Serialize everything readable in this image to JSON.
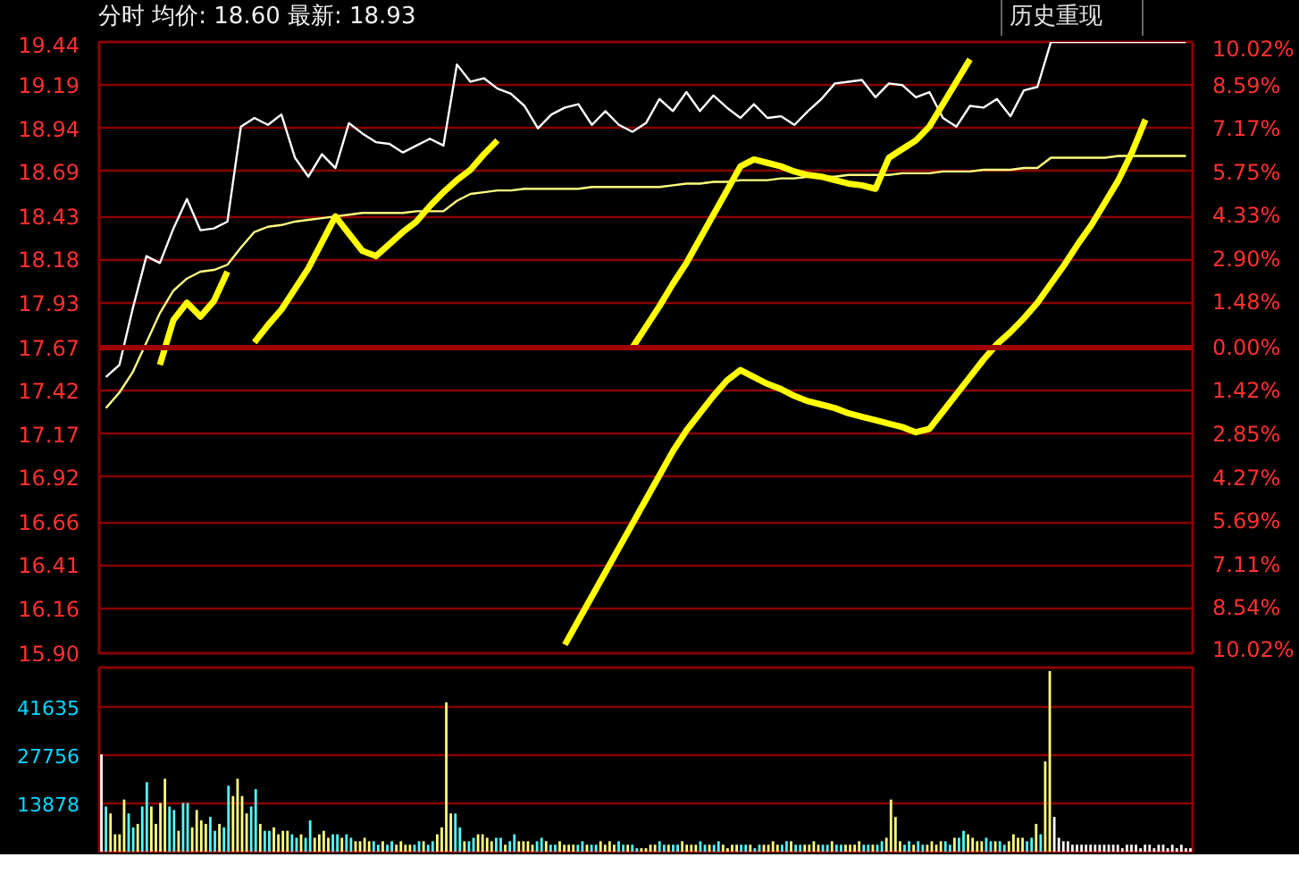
{
  "chart_data": [
    {
      "type": "line",
      "title": "分时 均价: 18.60 最新: 18.93",
      "annotations": [
        "历史重现"
      ],
      "categories": [
        null,
        null,
        null,
        null,
        null,
        null,
        null,
        null,
        null,
        null,
        null,
        null,
        null,
        null,
        null,
        null,
        null,
        null,
        null,
        null,
        null,
        null,
        null,
        null,
        null,
        null,
        null,
        null,
        null,
        null,
        null,
        null,
        null,
        null,
        null,
        null,
        null,
        null,
        null,
        null,
        null,
        null,
        null,
        null,
        null,
        null,
        null,
        null,
        null,
        null,
        null,
        null,
        null,
        null,
        null,
        null,
        null,
        null,
        null,
        null,
        null,
        null,
        null,
        null,
        null,
        null,
        null,
        null,
        null,
        null,
        null,
        null,
        null,
        null,
        null,
        null,
        null,
        null,
        null,
        null,
        null
      ],
      "ylim": [
        15.9,
        19.44
      ],
      "yticks": [
        19.44,
        19.19,
        18.94,
        18.69,
        18.43,
        18.18,
        17.93,
        17.67,
        17.42,
        17.17,
        16.92,
        16.66,
        16.41,
        16.16,
        {
          "value": 15.9,
          "label": "15.90"
        }
      ],
      "y2lim": [
        -10.02,
        10.02
      ],
      "y2ticks": [
        {
          "value": 10.02,
          "label": "10.02%"
        },
        {
          "value": 8.59,
          "label": "8.59%"
        },
        {
          "value": 7.17,
          "label": "7.17%"
        },
        {
          "value": 5.75,
          "label": "5.75%"
        },
        {
          "value": 4.33,
          "label": "4.33%"
        },
        {
          "value": 2.9,
          "label": "2.90%"
        },
        {
          "value": 1.48,
          "label": "1.48%"
        },
        {
          "value": 0,
          "label": "0.00%"
        },
        {
          "value": -1.42,
          "label": "1.42%"
        },
        {
          "value": -2.85,
          "label": "2.85%"
        },
        {
          "value": -4.27,
          "label": "4.27%"
        },
        {
          "value": -5.69,
          "label": "5.69%"
        },
        {
          "value": -7.11,
          "label": "7.11%"
        },
        {
          "value": -8.54,
          "label": "8.54%"
        },
        {
          "value": -10.02,
          "label": "10.02%"
        }
      ],
      "tick_labels": "y",
      "grid": "y",
      "ref_lines": [
        {
          "axis": "y",
          "value": 17.67,
          "color": "#a00000"
        }
      ],
      "series": [
        {
          "color": "#ffffff",
          "values": [
            17.5,
            17.57,
            17.9,
            18.2,
            18.16,
            18.36,
            18.53,
            18.35,
            18.36,
            18.4,
            18.95,
            19.0,
            18.96,
            19.02,
            18.77,
            18.66,
            18.79,
            18.71,
            18.97,
            18.91,
            18.86,
            18.85,
            18.8,
            18.84,
            18.88,
            18.84,
            19.31,
            19.21,
            19.23,
            19.17,
            19.14,
            19.07,
            18.94,
            19.02,
            19.06,
            19.08,
            18.96,
            19.04,
            18.96,
            18.92,
            18.97,
            19.11,
            19.04,
            19.15,
            19.04,
            19.13,
            19.06,
            19.0,
            19.08,
            19.0,
            19.01,
            18.96,
            19.04,
            19.11,
            19.2,
            19.21,
            19.22,
            19.12,
            19.2,
            19.19,
            19.12,
            19.15,
            19.0,
            18.95,
            19.07,
            19.06,
            19.11,
            19.01,
            19.16,
            19.18,
            19.44,
            19.44,
            19.44,
            19.44,
            19.44,
            19.44,
            19.44,
            19.44,
            19.44,
            19.44,
            19.44
          ]
        },
        {
          "color": "#ffff80",
          "values": [
            17.32,
            17.41,
            17.53,
            17.7,
            17.87,
            18.0,
            18.07,
            18.11,
            18.12,
            18.15,
            18.25,
            18.34,
            18.37,
            18.38,
            18.4,
            18.41,
            18.42,
            18.43,
            18.44,
            18.45,
            18.45,
            18.45,
            18.45,
            18.46,
            18.46,
            18.46,
            18.52,
            18.56,
            18.57,
            18.58,
            18.58,
            18.59,
            18.59,
            18.59,
            18.59,
            18.59,
            18.6,
            18.6,
            18.6,
            18.6,
            18.6,
            18.6,
            18.61,
            18.62,
            18.62,
            18.63,
            18.63,
            18.64,
            18.64,
            18.64,
            18.65,
            18.65,
            18.66,
            18.66,
            18.66,
            18.67,
            18.67,
            18.67,
            18.67,
            18.68,
            18.68,
            18.68,
            18.69,
            18.69,
            18.69,
            18.7,
            18.7,
            18.7,
            18.71,
            18.71,
            18.77,
            18.77,
            18.77,
            18.77,
            18.77,
            18.78,
            18.78,
            18.78,
            18.78,
            18.78,
            18.78
          ]
        },
        {
          "color": "#ffff00",
          "values": [
            null,
            null,
            null,
            null,
            17.57,
            17.83,
            17.93,
            17.85,
            17.94,
            18.11,
            null,
            null,
            null,
            null,
            null,
            null,
            null,
            null,
            null,
            null,
            null,
            null,
            null,
            null,
            null,
            null,
            null,
            null,
            null,
            null,
            null,
            null,
            null,
            null,
            null,
            null,
            null,
            null,
            null,
            null,
            null,
            null,
            null,
            null,
            null,
            null,
            null,
            null,
            null,
            null,
            null,
            null,
            null,
            null,
            null,
            null,
            null,
            null,
            null,
            null,
            null,
            null,
            null,
            null,
            null,
            null,
            null,
            null,
            null,
            null,
            null,
            null,
            null,
            null,
            null,
            null,
            null,
            null,
            null,
            null,
            null
          ]
        },
        {
          "color": "#ffff00",
          "values": [
            null,
            null,
            null,
            null,
            null,
            null,
            null,
            null,
            null,
            null,
            null,
            17.7,
            17.8,
            17.89,
            18.01,
            18.13,
            18.28,
            18.43,
            18.33,
            18.23,
            18.2,
            18.27,
            18.34,
            18.4,
            18.49,
            18.57,
            18.64,
            18.7,
            18.79,
            18.87,
            null,
            null,
            null,
            null,
            null,
            null,
            null,
            null,
            null,
            null,
            null,
            null,
            null,
            null,
            null,
            null,
            null,
            null,
            null,
            null,
            null,
            null,
            null,
            null,
            null,
            null,
            null,
            null,
            null,
            null,
            null,
            null,
            null,
            null,
            null,
            null,
            null,
            null,
            null,
            null,
            null,
            null,
            null,
            null,
            null,
            null,
            null,
            null,
            null,
            null,
            null
          ]
        },
        {
          "color": "#ffff00",
          "values": [
            null,
            null,
            null,
            null,
            null,
            null,
            null,
            null,
            null,
            null,
            null,
            null,
            null,
            null,
            null,
            null,
            null,
            null,
            null,
            null,
            null,
            null,
            null,
            null,
            null,
            null,
            null,
            null,
            null,
            null,
            null,
            null,
            null,
            null,
            null,
            null,
            null,
            null,
            null,
            17.67,
            17.79,
            17.91,
            18.04,
            18.16,
            18.3,
            18.44,
            18.58,
            18.72,
            18.76,
            18.74,
            18.72,
            18.69,
            18.67,
            18.66,
            18.64,
            18.62,
            18.61,
            18.59,
            18.77,
            18.82,
            18.87,
            18.95,
            19.08,
            19.21,
            19.34,
            null,
            null,
            null,
            null,
            null,
            null,
            null,
            null,
            null,
            null,
            null,
            null,
            null,
            null,
            null,
            null
          ]
        },
        {
          "color": "#ffff00",
          "values": [
            null,
            null,
            null,
            null,
            null,
            null,
            null,
            null,
            null,
            null,
            null,
            null,
            null,
            null,
            null,
            null,
            null,
            null,
            null,
            null,
            null,
            null,
            null,
            null,
            null,
            null,
            null,
            null,
            null,
            null,
            null,
            null,
            null,
            null,
            15.95,
            16.09,
            16.23,
            16.37,
            16.51,
            16.65,
            16.79,
            16.93,
            17.07,
            17.19,
            17.29,
            17.39,
            17.48,
            17.54,
            17.5,
            17.46,
            17.43,
            17.39,
            17.36,
            17.34,
            17.32,
            17.29,
            17.27,
            17.25,
            17.23,
            17.21,
            17.18,
            17.2,
            17.3,
            17.4,
            17.5,
            17.6,
            17.69,
            17.76,
            17.84,
            17.93,
            18.04,
            18.15,
            18.27,
            18.38,
            18.51,
            18.64,
            18.8,
            18.99,
            null,
            null,
            null
          ]
        }
      ]
    },
    {
      "type": "bar",
      "ylim": [
        0,
        53000
      ],
      "yticks": [
        13878,
        27756,
        41635
      ],
      "tick_labels": "y",
      "grid": "y",
      "categories": [
        null,
        null,
        null,
        null,
        null,
        null,
        null,
        null,
        null,
        null,
        null,
        null,
        null,
        null,
        null,
        null,
        null,
        null,
        null,
        null,
        null,
        null,
        null,
        null,
        null,
        null,
        null,
        null,
        null,
        null,
        null,
        null,
        null,
        null,
        null,
        null,
        null,
        null,
        null,
        null,
        null,
        null,
        null,
        null,
        null,
        null,
        null,
        null,
        null,
        null,
        null,
        null,
        null,
        null,
        null,
        null,
        null,
        null,
        null,
        null,
        null,
        null,
        null,
        null,
        null,
        null,
        null,
        null,
        null,
        null,
        null,
        null,
        null,
        null,
        null,
        null,
        null,
        null,
        null,
        null,
        null,
        null,
        null,
        null,
        null,
        null,
        null,
        null,
        null,
        null,
        null,
        null,
        null,
        null,
        null,
        null,
        null,
        null,
        null,
        null,
        null,
        null,
        null,
        null,
        null,
        null,
        null,
        null,
        null,
        null,
        null,
        null,
        null,
        null,
        null,
        null,
        null,
        null,
        null,
        null,
        null,
        null,
        null,
        null,
        null,
        null,
        null,
        null,
        null,
        null,
        null,
        null,
        null,
        null,
        null,
        null,
        null,
        null,
        null,
        null,
        null,
        null,
        null,
        null,
        null,
        null,
        null,
        null,
        null,
        null,
        null,
        null,
        null,
        null,
        null,
        null,
        null,
        null,
        null,
        null,
        null,
        null,
        null,
        null,
        null,
        null,
        null,
        null,
        null,
        null,
        null,
        null,
        null,
        null,
        null,
        null,
        null,
        null,
        null,
        null,
        null,
        null,
        null,
        null,
        null,
        null,
        null,
        null,
        null,
        null,
        null,
        null,
        null,
        null,
        null,
        null,
        null,
        null,
        null,
        null,
        null,
        null,
        null,
        null,
        null,
        null,
        null,
        null,
        null,
        null,
        null,
        null,
        null,
        null,
        null,
        null,
        null,
        null,
        null,
        null,
        null,
        null,
        null,
        null,
        null,
        null,
        null,
        null,
        null,
        null,
        null,
        null,
        null,
        null,
        null,
        null,
        null,
        null,
        null,
        null,
        null
      ],
      "values": [
        28000,
        13000,
        11000,
        5000,
        5000,
        15000,
        11000,
        7000,
        8000,
        13000,
        20000,
        13000,
        8000,
        14000,
        21000,
        13000,
        12000,
        6000,
        14000,
        14000,
        7000,
        12000,
        9000,
        8000,
        10000,
        6000,
        8000,
        7000,
        19000,
        16000,
        21000,
        16000,
        11000,
        13000,
        18000,
        8000,
        6000,
        6000,
        7000,
        5000,
        6000,
        6000,
        5000,
        4000,
        5000,
        4000,
        9000,
        4000,
        5000,
        6000,
        4000,
        5000,
        5000,
        4000,
        5000,
        4000,
        3000,
        3000,
        4000,
        3000,
        3000,
        2000,
        3000,
        2000,
        3000,
        2000,
        3000,
        2000,
        2000,
        2000,
        3000,
        3000,
        2000,
        3000,
        5000,
        7000,
        43000,
        11000,
        11000,
        7000,
        3000,
        3000,
        4000,
        5000,
        5000,
        4000,
        3000,
        4000,
        4000,
        2000,
        3000,
        5000,
        3000,
        3000,
        3000,
        2000,
        3000,
        4000,
        3000,
        2000,
        2000,
        3000,
        2000,
        2000,
        2000,
        2000,
        3000,
        2000,
        2000,
        2000,
        3000,
        2000,
        3000,
        2000,
        3000,
        2000,
        2000,
        2000,
        1000,
        1000,
        1000,
        2000,
        2000,
        3000,
        2000,
        2000,
        2000,
        2000,
        3000,
        2000,
        2000,
        2000,
        3000,
        2000,
        2000,
        2000,
        3000,
        2000,
        1000,
        2000,
        2000,
        2000,
        2000,
        2000,
        1000,
        2000,
        2000,
        2000,
        3000,
        2000,
        2000,
        3000,
        3000,
        2000,
        2000,
        2000,
        2000,
        3000,
        2000,
        2000,
        2000,
        3000,
        2000,
        2000,
        2000,
        2000,
        2000,
        3000,
        2000,
        2000,
        2000,
        2000,
        3000,
        4000,
        15000,
        10000,
        3000,
        2000,
        3000,
        2000,
        3000,
        2000,
        2000,
        3000,
        2000,
        3000,
        3000,
        2000,
        4000,
        4000,
        6000,
        5000,
        4000,
        3000,
        3000,
        4000,
        3000,
        3000,
        3000,
        2000,
        3000,
        5000,
        4000,
        4000,
        3000,
        4000,
        8000,
        5000,
        26000,
        52000,
        10000,
        4000,
        3000,
        3000,
        2000,
        2000,
        2000,
        2000,
        2000,
        2000,
        2000,
        2000,
        2000,
        2000,
        2000,
        1000,
        2000,
        2000,
        2000,
        1000,
        2000,
        2000,
        1000,
        2000,
        2000,
        1000,
        2000,
        1000,
        2000,
        1000,
        1000
      ],
      "colors": [
        "#ffffff",
        "#54fcfc",
        "#ffff80",
        "#ffff80",
        "#ffff80",
        "#ffff80",
        "#54fcfc",
        "#54fcfc",
        "#ffff80",
        "#54fcfc",
        "#54fcfc",
        "#ffff80",
        "#ffff80",
        "#ffff80",
        "#ffff80",
        "#54fcfc",
        "#54fcfc",
        "#ffff80",
        "#54fcfc",
        "#54fcfc",
        "#ffff80",
        "#ffff80",
        "#ffff80",
        "#ffff80",
        "#54fcfc",
        "#54fcfc",
        "#ffff80",
        "#54fcfc",
        "#54fcfc",
        "#ffff80",
        "#ffff80",
        "#ffff80",
        "#ffff80",
        "#54fcfc",
        "#54fcfc",
        "#ffff80",
        "#54fcfc",
        "#54fcfc",
        "#ffff80",
        "#ffff80",
        "#ffff80",
        "#ffff80",
        "#54fcfc",
        "#54fcfc",
        "#ffff80",
        "#54fcfc",
        "#54fcfc",
        "#ffff80",
        "#ffff80",
        "#ffff80",
        "#ffff80",
        "#54fcfc",
        "#54fcfc",
        "#ffff80",
        "#54fcfc",
        "#54fcfc",
        "#ffff80",
        "#ffff80",
        "#ffff80",
        "#ffff80",
        "#54fcfc",
        "#54fcfc",
        "#ffff80",
        "#54fcfc",
        "#54fcfc",
        "#ffff80",
        "#ffff80",
        "#ffff80",
        "#ffff80",
        "#54fcfc",
        "#54fcfc",
        "#ffff80",
        "#54fcfc",
        "#54fcfc",
        "#ffff80",
        "#ffff80",
        "#ffff80",
        "#ffff80",
        "#54fcfc",
        "#54fcfc",
        "#ffff80",
        "#54fcfc",
        "#54fcfc",
        "#ffff80",
        "#ffff80",
        "#ffff80",
        "#ffff80",
        "#54fcfc",
        "#54fcfc",
        "#ffff80",
        "#54fcfc",
        "#54fcfc",
        "#ffff80",
        "#ffff80",
        "#ffff80",
        "#ffff80",
        "#54fcfc",
        "#54fcfc",
        "#ffff80",
        "#54fcfc",
        "#54fcfc",
        "#ffff80",
        "#ffff80",
        "#ffff80",
        "#ffff80",
        "#54fcfc",
        "#54fcfc",
        "#ffff80",
        "#54fcfc",
        "#54fcfc",
        "#ffff80",
        "#ffff80",
        "#ffff80",
        "#ffff80",
        "#54fcfc",
        "#54fcfc",
        "#ffff80",
        "#54fcfc",
        "#54fcfc",
        "#ffff80",
        "#ffff80",
        "#ffff80",
        "#ffff80",
        "#54fcfc",
        "#54fcfc",
        "#ffff80",
        "#54fcfc",
        "#54fcfc",
        "#ffff80",
        "#ffff80",
        "#ffff80",
        "#ffff80",
        "#54fcfc",
        "#54fcfc",
        "#ffff80",
        "#54fcfc",
        "#54fcfc",
        "#ffff80",
        "#ffff80",
        "#ffff80",
        "#ffff80",
        "#54fcfc",
        "#54fcfc",
        "#ffff80",
        "#54fcfc",
        "#54fcfc",
        "#ffff80",
        "#ffff80",
        "#ffff80",
        "#ffff80",
        "#54fcfc",
        "#54fcfc",
        "#ffff80",
        "#54fcfc",
        "#54fcfc",
        "#ffff80",
        "#ffff80",
        "#ffff80",
        "#ffff80",
        "#54fcfc",
        "#54fcfc",
        "#ffff80",
        "#54fcfc",
        "#54fcfc",
        "#ffff80",
        "#ffff80",
        "#ffff80",
        "#ffff80",
        "#54fcfc",
        "#54fcfc",
        "#ffff80",
        "#54fcfc",
        "#54fcfc",
        "#ffff80",
        "#ffff80",
        "#ffff80",
        "#ffff80",
        "#54fcfc",
        "#54fcfc",
        "#ffff80",
        "#54fcfc",
        "#54fcfc",
        "#ffff80",
        "#ffff80",
        "#ffff80",
        "#ffff80",
        "#54fcfc",
        "#54fcfc",
        "#ffff80",
        "#54fcfc",
        "#54fcfc",
        "#ffff80",
        "#ffff80",
        "#ffff80",
        "#ffff80",
        "#54fcfc",
        "#54fcfc",
        "#ffff80",
        "#54fcfc",
        "#54fcfc",
        "#ffff80",
        "#ffff80",
        "#ffff80",
        "#ffff80",
        "#54fcfc",
        "#54fcfc",
        "#ffff80",
        "#54fcfc",
        "#ffff80",
        "#ffff80",
        "#ffffff",
        "#ffffff",
        "#ffffff",
        "#ffffff",
        "#ffffff",
        "#ffffff",
        "#ffffff",
        "#ffffff",
        "#ffffff",
        "#ffffff",
        "#ffffff",
        "#ffffff",
        "#ffffff",
        "#ffffff",
        "#ffffff",
        "#ffffff",
        "#ffffff",
        "#ffffff",
        "#ffffff",
        "#ffffff",
        "#ffffff",
        "#ffffff",
        "#ffffff",
        "#ffffff",
        "#ffffff",
        "#ffffff",
        "#ffffff",
        "#ffffff",
        "#ffffff",
        "#ffffff",
        "#ffffff"
      ]
    }
  ]
}
